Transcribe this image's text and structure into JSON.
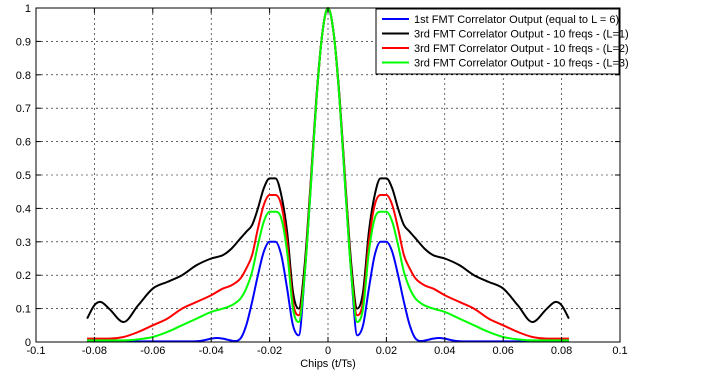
{
  "chart_data": {
    "type": "line",
    "title": "",
    "xlabel": "Chips (t/Ts)",
    "ylabel": "",
    "xlim": [
      -0.1,
      0.1
    ],
    "ylim": [
      0,
      1
    ],
    "xticks": [
      -0.1,
      -0.08,
      -0.06,
      -0.04,
      -0.02,
      0,
      0.02,
      0.04,
      0.06,
      0.08,
      0.1
    ],
    "xtick_labels": [
      "-0.1",
      "-0.08",
      "-0.06",
      "-0.04",
      "-0.02",
      "0",
      "0.02",
      "0.04",
      "0.06",
      "0.08",
      "0.1"
    ],
    "yticks": [
      0,
      0.1,
      0.2,
      0.3,
      0.4,
      0.5,
      0.6,
      0.7,
      0.8,
      0.9,
      1
    ],
    "ytick_labels": [
      "0",
      "0.1",
      "0.2",
      "0.3",
      "0.4",
      "0.5",
      "0.6",
      "0.7",
      "0.8",
      "0.9",
      "1"
    ],
    "grid": true,
    "legend_position": "top-right",
    "series": [
      {
        "name": "1st FMT Correlator Output (equal to L = 6)",
        "color": "#0000ff",
        "x": [
          0,
          0.002,
          0.004,
          0.006,
          0.008,
          0.01,
          0.012,
          0.014,
          0.016,
          0.018,
          0.02,
          0.022,
          0.024,
          0.026,
          0.028,
          0.03,
          0.032,
          0.034,
          0.036,
          0.038,
          0.04,
          0.042,
          0.044,
          0.046,
          0.05,
          0.055,
          0.06,
          0.065,
          0.07,
          0.075,
          0.08,
          0.0825
        ],
        "y": [
          1.0,
          0.92,
          0.72,
          0.45,
          0.2,
          0.02,
          0.05,
          0.16,
          0.26,
          0.3,
          0.3,
          0.27,
          0.2,
          0.12,
          0.05,
          0.01,
          0.003,
          0.006,
          0.01,
          0.012,
          0.01,
          0.006,
          0.003,
          0.002,
          0.002,
          0.002,
          0.002,
          0.002,
          0.002,
          0.002,
          0.002,
          0.002
        ]
      },
      {
        "name": "3rd FMT Correlator Output - 10 freqs - (L=1)",
        "color": "#000000",
        "x": [
          0,
          0.002,
          0.004,
          0.006,
          0.008,
          0.01,
          0.012,
          0.014,
          0.016,
          0.018,
          0.02,
          0.022,
          0.024,
          0.026,
          0.028,
          0.03,
          0.033,
          0.036,
          0.04,
          0.045,
          0.05,
          0.055,
          0.06,
          0.065,
          0.07,
          0.075,
          0.078,
          0.08,
          0.0825
        ],
        "y": [
          1.0,
          0.92,
          0.73,
          0.47,
          0.23,
          0.1,
          0.15,
          0.33,
          0.44,
          0.49,
          0.49,
          0.46,
          0.4,
          0.35,
          0.33,
          0.31,
          0.28,
          0.26,
          0.25,
          0.23,
          0.2,
          0.18,
          0.16,
          0.11,
          0.06,
          0.1,
          0.12,
          0.11,
          0.07
        ]
      },
      {
        "name": "3rd FMT Correlator Output - 10 freqs - (L=2)",
        "color": "#ff0000",
        "x": [
          0,
          0.002,
          0.004,
          0.006,
          0.008,
          0.01,
          0.012,
          0.014,
          0.016,
          0.018,
          0.02,
          0.022,
          0.024,
          0.026,
          0.028,
          0.03,
          0.033,
          0.036,
          0.04,
          0.045,
          0.05,
          0.055,
          0.06,
          0.065,
          0.07,
          0.075,
          0.08,
          0.0825
        ],
        "y": [
          1.0,
          0.92,
          0.72,
          0.46,
          0.21,
          0.08,
          0.12,
          0.3,
          0.41,
          0.44,
          0.44,
          0.41,
          0.34,
          0.26,
          0.22,
          0.19,
          0.17,
          0.16,
          0.14,
          0.12,
          0.1,
          0.07,
          0.05,
          0.03,
          0.015,
          0.01,
          0.01,
          0.01
        ]
      },
      {
        "name": "3rd FMT Correlator Output - 10 freqs - (L=3)",
        "color": "#00ff00",
        "x": [
          0,
          0.002,
          0.004,
          0.006,
          0.008,
          0.01,
          0.012,
          0.014,
          0.016,
          0.018,
          0.02,
          0.022,
          0.024,
          0.026,
          0.028,
          0.03,
          0.033,
          0.036,
          0.04,
          0.045,
          0.05,
          0.055,
          0.06,
          0.065,
          0.07,
          0.075,
          0.08,
          0.0825
        ],
        "y": [
          1.0,
          0.92,
          0.72,
          0.45,
          0.2,
          0.06,
          0.1,
          0.27,
          0.37,
          0.39,
          0.39,
          0.36,
          0.29,
          0.21,
          0.16,
          0.13,
          0.11,
          0.1,
          0.09,
          0.07,
          0.05,
          0.03,
          0.015,
          0.008,
          0.005,
          0.005,
          0.005,
          0.005
        ]
      }
    ]
  }
}
